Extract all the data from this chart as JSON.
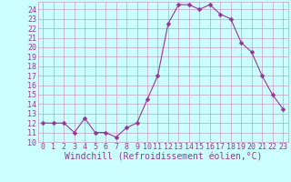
{
  "x": [
    0,
    1,
    2,
    3,
    4,
    5,
    6,
    7,
    8,
    9,
    10,
    11,
    12,
    13,
    14,
    15,
    16,
    17,
    18,
    19,
    20,
    21,
    22,
    23
  ],
  "y": [
    12,
    12,
    12,
    11,
    12.5,
    11,
    11,
    10.5,
    11.5,
    12,
    14.5,
    17,
    22.5,
    24.5,
    24.5,
    24,
    24.5,
    23.5,
    23,
    20.5,
    19.5,
    17,
    15,
    13.5
  ],
  "line_color": "#993399",
  "marker_color": "#993399",
  "bg_color": "#ccffff",
  "grid_color": "#cc99cc",
  "xlabel": "Windchill (Refroidissement éolien,°C)",
  "xlim": [
    -0.5,
    23.5
  ],
  "ylim": [
    10,
    24.8
  ],
  "yticks": [
    10,
    11,
    12,
    13,
    14,
    15,
    16,
    17,
    18,
    19,
    20,
    21,
    22,
    23,
    24
  ],
  "xticks": [
    0,
    1,
    2,
    3,
    4,
    5,
    6,
    7,
    8,
    9,
    10,
    11,
    12,
    13,
    14,
    15,
    16,
    17,
    18,
    19,
    20,
    21,
    22,
    23
  ],
  "xlabel_fontsize": 7,
  "tick_fontsize": 6,
  "marker_size": 2.5,
  "line_width": 0.8
}
